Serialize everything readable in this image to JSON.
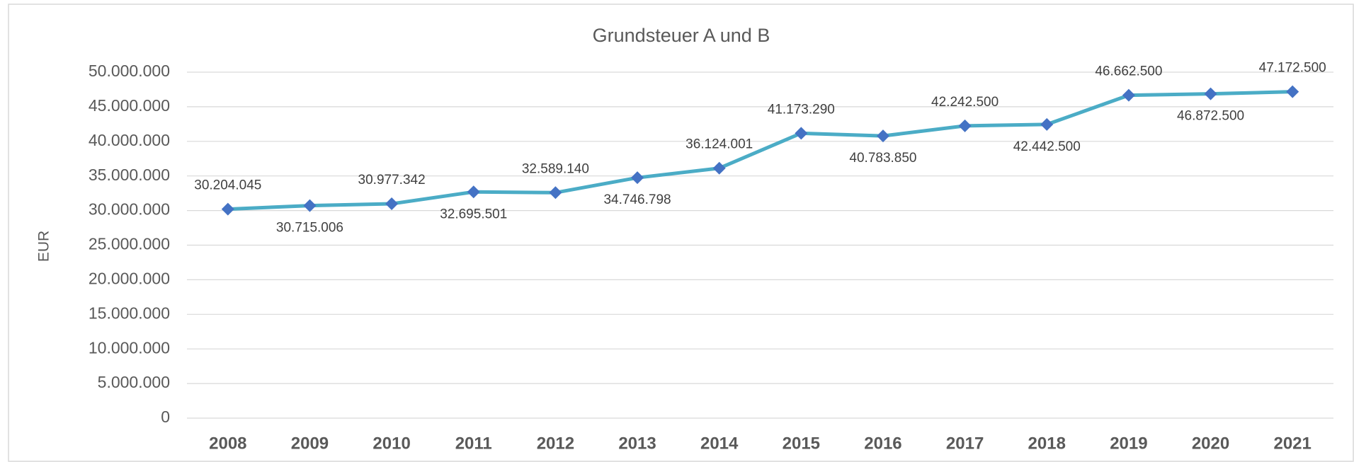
{
  "chart_data": {
    "type": "line",
    "title": "Grundsteuer A und B",
    "y_label": "EUR",
    "categories": [
      "2008",
      "2009",
      "2010",
      "2011",
      "2012",
      "2013",
      "2014",
      "2015",
      "2016",
      "2017",
      "2018",
      "2019",
      "2020",
      "2021"
    ],
    "series": [
      {
        "name": "Grundsteuer A und B",
        "color": "#4bacc6",
        "marker_color": "#4472c4",
        "values": [
          30204045,
          30715006,
          30977342,
          32695501,
          32589140,
          34746798,
          36124001,
          41173290,
          40783850,
          42242500,
          42442500,
          46662500,
          46872500,
          47172500
        ],
        "value_labels": [
          "30.204.045",
          "30.715.006",
          "30.977.342",
          "32.695.501",
          "32.589.140",
          "34.746.798",
          "36.124.001",
          "41.173.290",
          "40.783.850",
          "42.242.500",
          "42.442.500",
          "46.662.500",
          "46.872.500",
          "47.172.500"
        ]
      }
    ],
    "ylim": [
      0,
      50000000
    ],
    "yticks": [
      0,
      {
        "value": 5000000,
        "label": "5.000.000"
      },
      {
        "value": 10000000,
        "label": "10.000.000"
      },
      {
        "value": 15000000,
        "label": "15.000.000"
      },
      {
        "value": 20000000,
        "label": "20.000.000"
      },
      {
        "value": 25000000,
        "label": "25.000.000"
      },
      {
        "value": 30000000,
        "label": "30.000.000"
      },
      {
        "value": 35000000,
        "label": "35.000.000"
      },
      {
        "value": 40000000,
        "label": "40.000.000"
      },
      {
        "value": 45000000,
        "label": "45.000.000"
      },
      {
        "value": 50000000,
        "label": "50.000.000"
      }
    ],
    "grid": true
  }
}
